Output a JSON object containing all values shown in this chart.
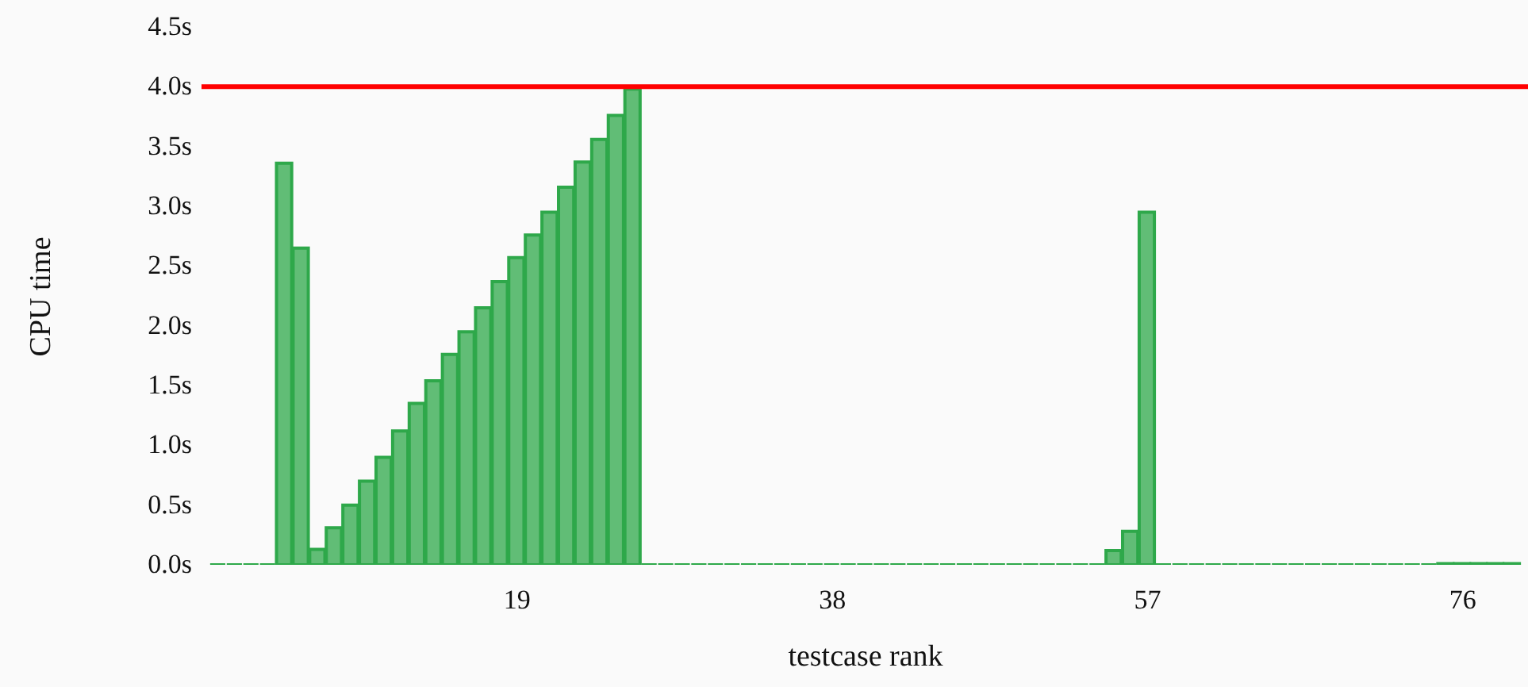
{
  "chart_data": {
    "type": "bar",
    "xlabel": "testcase rank",
    "ylabel": "CPU time",
    "x": [
      1,
      2,
      3,
      4,
      5,
      6,
      7,
      8,
      9,
      10,
      11,
      12,
      13,
      14,
      15,
      16,
      17,
      18,
      19,
      20,
      21,
      22,
      23,
      24,
      25,
      26,
      27,
      28,
      29,
      30,
      31,
      32,
      33,
      34,
      35,
      36,
      37,
      38,
      39,
      40,
      41,
      42,
      43,
      44,
      45,
      46,
      47,
      48,
      49,
      50,
      51,
      52,
      53,
      54,
      55,
      56,
      57,
      58,
      59,
      60,
      61,
      62,
      63,
      64,
      65,
      66,
      67,
      68,
      69,
      70,
      71,
      72,
      73,
      74,
      75,
      76,
      77,
      78,
      79
    ],
    "series": [
      {
        "color": "#2ea84a",
        "values": [
          0,
          0,
          0,
          0,
          3.36,
          2.65,
          0.13,
          0.31,
          0.5,
          0.7,
          0.9,
          1.12,
          1.35,
          1.54,
          1.76,
          1.95,
          2.15,
          2.37,
          2.57,
          2.76,
          2.95,
          3.16,
          3.37,
          3.56,
          3.76,
          3.98,
          0,
          0,
          0,
          0,
          0,
          0,
          0,
          0,
          0,
          0,
          0,
          0,
          0,
          0,
          0,
          0,
          0,
          0,
          0,
          0,
          0,
          0,
          0,
          0,
          0,
          0,
          0,
          0,
          0.12,
          0.28,
          2.95,
          0,
          0,
          0,
          0,
          0,
          0,
          0,
          0,
          0,
          0,
          0,
          0,
          0,
          0,
          0,
          0,
          0,
          0.01,
          0.01,
          0.01,
          0.01,
          0.01
        ]
      }
    ],
    "xlim": [
      0.5,
      79.5
    ],
    "xticks": [
      19,
      38,
      57,
      76
    ],
    "ylim": [
      0,
      4.5
    ],
    "yticks": [
      {
        "value": 0,
        "label": "0.0s"
      },
      {
        "value": 0.5,
        "label": "0.5s"
      },
      {
        "value": 1,
        "label": "1.0s"
      },
      {
        "value": 1.5,
        "label": "1.5s"
      },
      {
        "value": 2,
        "label": "2.0s"
      },
      {
        "value": 2.5,
        "label": "2.5s"
      },
      {
        "value": 3,
        "label": "3.0s"
      },
      {
        "value": 3.5,
        "label": "3.5s"
      },
      {
        "value": 4,
        "label": "4.0s"
      },
      {
        "value": 4.5,
        "label": "4.5s"
      }
    ],
    "ref_lines": [
      {
        "axis": "y",
        "value": 4,
        "color": "#ff0000"
      }
    ],
    "grid": false
  }
}
